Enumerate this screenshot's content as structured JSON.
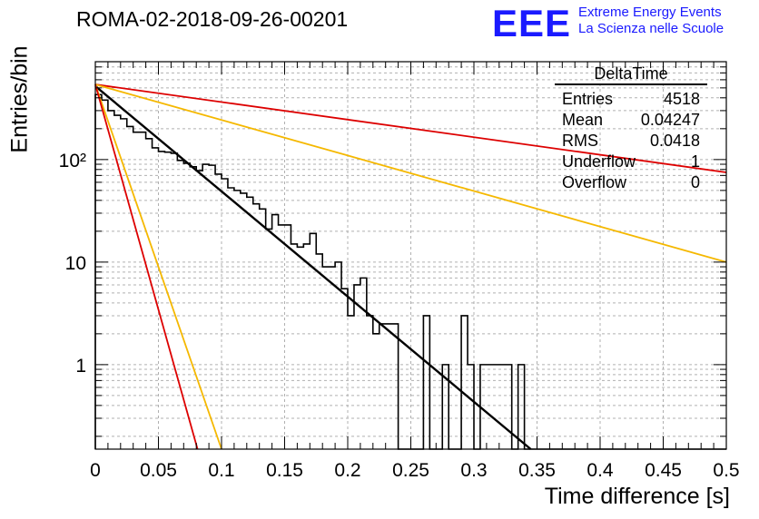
{
  "header": {
    "title": "ROMA-02-2018-09-26-00201",
    "logo_text": "EEE",
    "org_line1": "Extreme Energy Events",
    "org_line2": "La Scienza nelle Scuole"
  },
  "stats_box": {
    "name": "DeltaTime",
    "rows": [
      {
        "label": "Entries",
        "value": "4518"
      },
      {
        "label": "Mean",
        "value": "0.04247"
      },
      {
        "label": "RMS",
        "value": "0.0418"
      },
      {
        "label": "Underflow",
        "value": "1"
      },
      {
        "label": "Overflow",
        "value": "0"
      }
    ]
  },
  "chart_data": {
    "type": "line",
    "title": "ROMA-02-2018-09-26-00201",
    "xlabel": "Time difference [s]",
    "ylabel": "Entries/bin",
    "xlim": [
      0,
      0.5
    ],
    "ylim": [
      0.15,
      900
    ],
    "yscale": "log",
    "grid": true,
    "x_ticks": [
      "0",
      "0.05",
      "0.1",
      "0.15",
      "0.2",
      "0.25",
      "0.3",
      "0.35",
      "0.4",
      "0.45",
      "0.5"
    ],
    "y_ticks": [
      {
        "value": 1,
        "label": "1"
      },
      {
        "value": 10,
        "label": "10"
      },
      {
        "value": 100,
        "label": "10²"
      }
    ],
    "histogram": {
      "name": "DeltaTime",
      "bin_width": 0.005,
      "color": "#000000",
      "counts": [
        430,
        380,
        300,
        270,
        250,
        210,
        185,
        185,
        160,
        130,
        120,
        118,
        115,
        98,
        92,
        85,
        78,
        90,
        88,
        72,
        65,
        53,
        50,
        47,
        43,
        37,
        33,
        21,
        29,
        23,
        23,
        15,
        14,
        15,
        19,
        12,
        9,
        9,
        10,
        5.5,
        3,
        6,
        7,
        3,
        2,
        2.5,
        2.5,
        2.5,
        0,
        0,
        0,
        0.1,
        3,
        0,
        0.1,
        1,
        0,
        0.1,
        3,
        1,
        0,
        1,
        1,
        1,
        1,
        1,
        0,
        1,
        0,
        0,
        0,
        0,
        0,
        0,
        0,
        0,
        0,
        0,
        0,
        0,
        0,
        0,
        0,
        0,
        0,
        0,
        0,
        0,
        0,
        0,
        0,
        0,
        0,
        0,
        0,
        0,
        0,
        0,
        0,
        0
      ]
    },
    "series": [
      {
        "color": "#000000",
        "x": [
          0,
          0.345
        ],
        "y": [
          520,
          0.15
        ]
      },
      {
        "color": "#dd0000",
        "x": [
          0,
          0.5
        ],
        "y": [
          540,
          75
        ]
      },
      {
        "color": "#f5b800",
        "x": [
          0,
          0.5
        ],
        "y": [
          540,
          10
        ]
      },
      {
        "color": "#f5b800",
        "x": [
          0,
          0.1
        ],
        "y": [
          540,
          0.15
        ]
      },
      {
        "color": "#dd0000",
        "x": [
          0,
          0.081
        ],
        "y": [
          540,
          0.15
        ]
      }
    ]
  }
}
